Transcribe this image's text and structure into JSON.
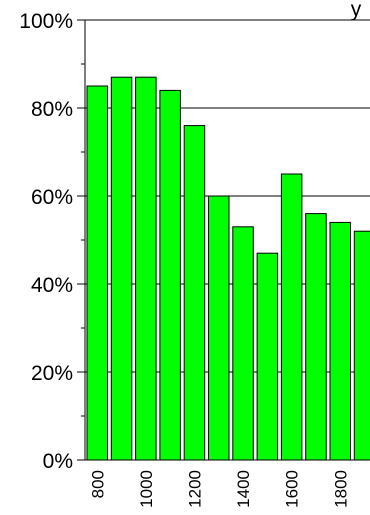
{
  "chart_data": {
    "type": "bar",
    "title": "y",
    "xlabel": "",
    "ylabel": "",
    "categories": [
      "800",
      "900",
      "1000",
      "1100",
      "1200",
      "1300",
      "1400",
      "1500",
      "1600",
      "1700",
      "1800",
      "1900"
    ],
    "x_tick_labels": [
      "800",
      "1000",
      "1200",
      "1400",
      "1600",
      "1800"
    ],
    "values": [
      85,
      87,
      87,
      84,
      76,
      60,
      53,
      47,
      65,
      56,
      54,
      52
    ],
    "ylim": [
      0,
      100
    ],
    "y_ticks": [
      0,
      20,
      40,
      60,
      80,
      100
    ],
    "y_tick_labels": [
      "0%",
      "20%",
      "40%",
      "60%",
      "80%",
      "100%"
    ],
    "grid": true,
    "legend": "none",
    "colors": {
      "bar_fill": "#00ff00",
      "bar_stroke": "#000000",
      "grid": "#000000",
      "axis": "#000000",
      "background": "#ffffff"
    }
  }
}
